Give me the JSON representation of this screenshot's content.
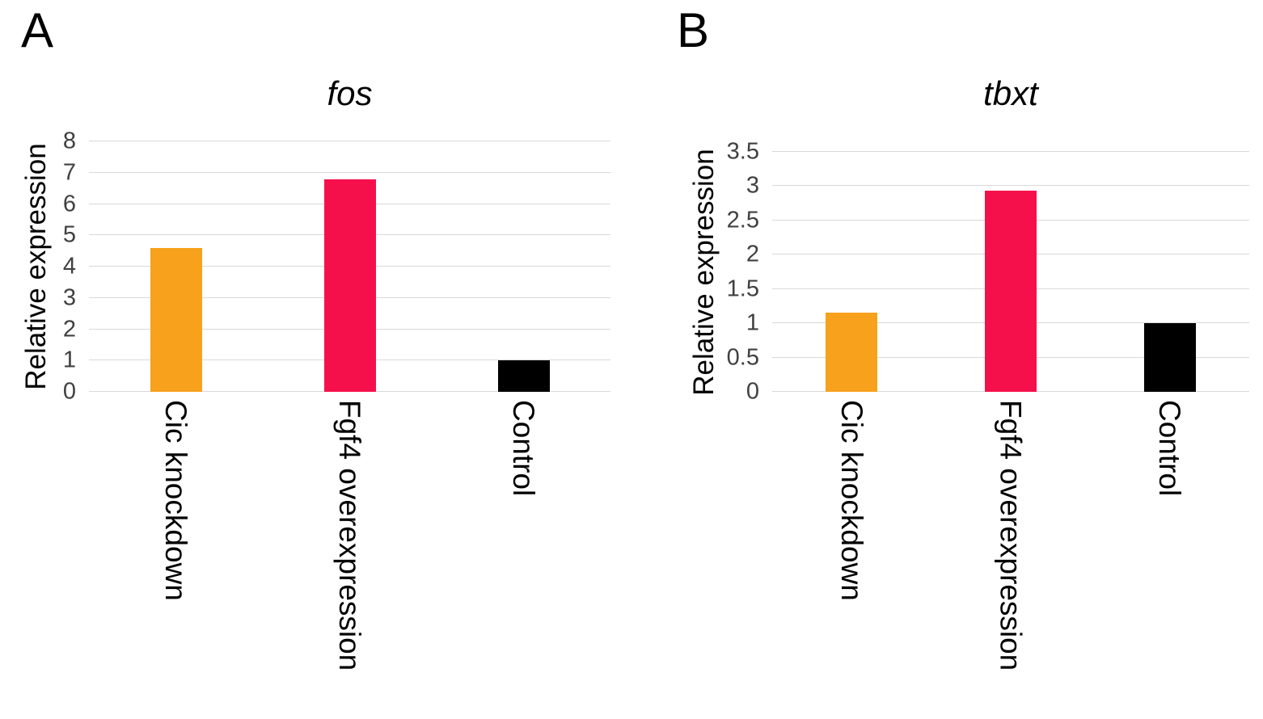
{
  "page": {
    "background": "#FFFFFF"
  },
  "panels": [
    {
      "letter": "A"
    },
    {
      "letter": "B"
    }
  ],
  "chart_data": [
    {
      "type": "bar",
      "title": "fos",
      "xlabel": "",
      "ylabel": "Relative expression",
      "categories": [
        "Cic knockdown",
        "Fgf4 overexpression",
        "Control"
      ],
      "values": [
        4.6,
        6.8,
        1.0
      ],
      "ylim": [
        0,
        8
      ],
      "ytick_step": 1,
      "yticks": [
        "0",
        "1",
        "2",
        "3",
        "4",
        "5",
        "6",
        "7",
        "8"
      ],
      "bar_colors": [
        "#F7A11C",
        "#F6104B",
        "#000000"
      ],
      "gridlines": true,
      "gridline_color": "#D9D9D9",
      "legend_position": "none"
    },
    {
      "type": "bar",
      "title": "tbxt",
      "xlabel": "",
      "ylabel": "Relative expression",
      "categories": [
        "Cic knockdown",
        "Fgf4 overexpression",
        "Control"
      ],
      "values": [
        1.15,
        2.93,
        1.0
      ],
      "ylim": [
        0,
        3.5
      ],
      "ytick_step": 0.5,
      "yticks": [
        "0",
        "0.5",
        "1",
        "1.5",
        "2",
        "2.5",
        "3",
        "3.5"
      ],
      "bar_colors": [
        "#F7A11C",
        "#F6104B",
        "#000000"
      ],
      "gridlines": true,
      "gridline_color": "#D9D9D9",
      "legend_position": "none"
    }
  ]
}
